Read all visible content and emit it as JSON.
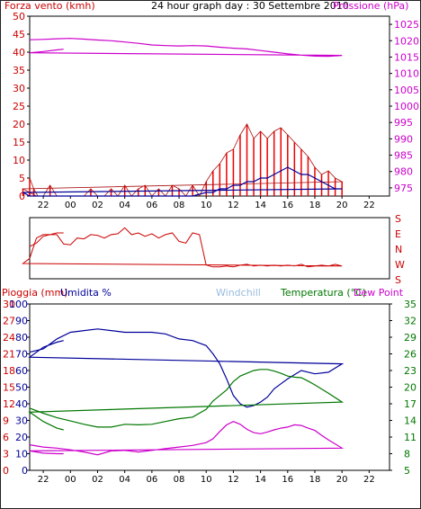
{
  "header": {
    "wind_title": "Forza vento (kmh)",
    "main_title": "24 hour graph day : 30 Settembre 2010",
    "pressure_title": "Pressione (hPa)"
  },
  "bottom_header": {
    "rain_title": "Pioggia (mm)",
    "humidity_title": "Umidita %",
    "windchill_title": "Windchill",
    "temp_title": "Temperatura (°C)",
    "dewpoint_title": "Dew Point"
  },
  "colors": {
    "wind": "#ee0000",
    "wind_dark": "#aa1111",
    "gust": "#000099",
    "pressure": "#cc00cc",
    "humidity": "#000099",
    "temperature": "#007700",
    "dewpoint": "#cc00cc",
    "windchill": "#99bbdd",
    "axis": "#000080"
  },
  "chart_data": [
    {
      "type": "line",
      "name": "wind-pressure",
      "x_tick_labels": [
        "22",
        "00",
        "02",
        "04",
        "06",
        "08",
        "10",
        "12",
        "14",
        "16",
        "18",
        "20",
        "22"
      ],
      "y_left": {
        "label": "Forza vento (kmh)",
        "ylim": [
          0,
          50
        ],
        "ticks": [
          "0",
          "5",
          "10",
          "15",
          "20",
          "25",
          "30",
          "35",
          "40",
          "45",
          "50"
        ]
      },
      "y_right": {
        "label": "Pressione (hPa)",
        "ylim": [
          972.5,
          1027.5
        ],
        "ticks": [
          "975",
          "980",
          "985",
          "990",
          "995",
          "1000",
          "1005",
          "1010",
          "1015",
          "1020",
          "1025"
        ]
      },
      "series": [
        {
          "name": "Pressione (hPa)",
          "axis": "right",
          "x": [
            21,
            22,
            23,
            0,
            1,
            2,
            3,
            4,
            5,
            6,
            7,
            8,
            9,
            10,
            11,
            12,
            13,
            14,
            15,
            16,
            17,
            18,
            19,
            20,
            21,
            22,
            23,
            23.5
          ],
          "values": [
            1020.3,
            1020.4,
            1020.6,
            1020.7,
            1020.5,
            1020.2,
            1020.0,
            1019.6,
            1019.2,
            1018.7,
            1018.5,
            1018.4,
            1018.5,
            1018.4,
            1018.0,
            1017.7,
            1017.5,
            1017.0,
            1016.5,
            1016.0,
            1015.6,
            1015.3,
            1015.2,
            1015.5,
            1016.3,
            1016.7,
            1017.2,
            1017.4
          ]
        },
        {
          "name": "Forza vento (kmh)",
          "axis": "left",
          "x": [
            21,
            21.3,
            21.6,
            22,
            22.5,
            23,
            23.5,
            0,
            0.5,
            1,
            1.5,
            2,
            2.5,
            3,
            3.5,
            4,
            4.5,
            5,
            5.5,
            6,
            6.5,
            7,
            7.5,
            8,
            8.5,
            9,
            9.5,
            10,
            10.5,
            11,
            11.5,
            12,
            12.5,
            13,
            13.5,
            14,
            14.5,
            15,
            15.5,
            16,
            16.5,
            17,
            17.5,
            18,
            18.5,
            19,
            19.5,
            20,
            20.5,
            21,
            21.5,
            22,
            22.5,
            23,
            23.5
          ],
          "values": [
            5,
            2,
            0,
            0,
            3,
            0,
            0,
            0,
            0,
            0,
            2,
            0,
            0,
            2,
            0,
            3,
            0,
            2,
            3,
            0,
            2,
            0,
            3,
            2,
            0,
            3,
            0,
            4,
            7,
            9,
            12,
            13,
            17,
            20,
            16,
            18,
            16,
            18,
            19,
            17,
            15,
            13,
            11,
            8,
            6,
            7,
            5,
            4,
            2,
            1,
            0,
            0,
            0,
            0,
            0
          ]
        },
        {
          "name": "Raffica (kmh)",
          "axis": "left",
          "x": [
            21,
            22,
            23,
            0,
            2,
            4,
            6,
            8,
            9,
            10,
            10.5,
            11,
            11.5,
            12,
            12.5,
            13,
            13.5,
            14,
            14.5,
            15,
            15.5,
            16,
            16.5,
            17,
            17.5,
            18,
            18.5,
            19,
            19.5,
            20,
            20.5,
            21,
            22,
            23,
            23.5
          ],
          "values": [
            0,
            0,
            0,
            0,
            0,
            0,
            0,
            0,
            0,
            1,
            1,
            2,
            2,
            3,
            3,
            4,
            4,
            5,
            5,
            6,
            7,
            8,
            7,
            6,
            6,
            5,
            4,
            3,
            2,
            2,
            1,
            0,
            0,
            0,
            0
          ]
        }
      ]
    },
    {
      "type": "line",
      "name": "wind-direction",
      "x_tick_labels": [
        "22",
        "00",
        "02",
        "04",
        "06",
        "08",
        "10",
        "12",
        "14",
        "16",
        "18",
        "20",
        "22"
      ],
      "y_right": {
        "ticks": [
          "S",
          "E",
          "N",
          "W",
          "S"
        ]
      },
      "series": [
        {
          "name": "Direzione vento",
          "x": [
            21,
            21.5,
            22,
            22.5,
            23,
            23.5,
            0,
            0.5,
            1,
            1.5,
            2,
            2.5,
            3,
            3.5,
            4,
            4.5,
            5,
            5.5,
            6,
            6.5,
            7,
            7.5,
            8,
            8.5,
            9,
            9.5,
            10,
            10.5,
            11,
            11.5,
            12,
            12.5,
            13,
            13.5,
            14,
            14.5,
            15,
            15.5,
            16,
            16.5,
            17,
            17.5,
            18,
            18.5,
            19,
            19.5,
            20,
            20.5,
            21,
            21.5,
            22,
            22.5,
            23,
            23.5
          ],
          "values": [
            170,
            150,
            110,
            100,
            100,
            155,
            160,
            120,
            125,
            100,
            105,
            120,
            100,
            95,
            60,
            100,
            90,
            110,
            95,
            120,
            100,
            90,
            140,
            150,
            90,
            100,
            280,
            290,
            290,
            285,
            290,
            280,
            275,
            285,
            280,
            285,
            280,
            285,
            280,
            285,
            275,
            290,
            285,
            280,
            285,
            275,
            285,
            270,
            240,
            120,
            100,
            100,
            90,
            90
          ]
        }
      ]
    },
    {
      "type": "line",
      "name": "temp-humidity-rain",
      "x_tick_labels": [
        "22",
        "00",
        "02",
        "04",
        "06",
        "08",
        "10",
        "12",
        "14",
        "16",
        "18",
        "20",
        "22"
      ],
      "y_rain": {
        "label": "Pioggia (mm)",
        "ylim": [
          0,
          30
        ],
        "ticks": [
          "0",
          "3",
          "6",
          "9",
          "12",
          "15",
          "18",
          "21",
          "24",
          "27",
          "30"
        ]
      },
      "y_humidity": {
        "label": "Umidita %",
        "ylim": [
          0,
          100
        ],
        "ticks": [
          "0",
          "10",
          "20",
          "30",
          "40",
          "50",
          "60",
          "70",
          "80",
          "90",
          "100"
        ]
      },
      "y_temp": {
        "label": "Temperatura (°C)",
        "ylim": [
          5,
          35
        ],
        "ticks": [
          "5",
          "8",
          "11",
          "14",
          "17",
          "20",
          "23",
          "26",
          "29",
          "32",
          "35"
        ]
      },
      "series": [
        {
          "name": "Umidita %",
          "axis": "humidity",
          "x": [
            21,
            22,
            23,
            0,
            1,
            2,
            3,
            4,
            5,
            6,
            7,
            8,
            9,
            10,
            10.5,
            11,
            11.5,
            12,
            12.5,
            13,
            13.5,
            14,
            14.5,
            15,
            15.5,
            16,
            17,
            18,
            19,
            20,
            21,
            22,
            23,
            23.5
          ],
          "values": [
            71,
            73,
            79,
            83,
            84,
            85,
            84,
            83,
            83,
            83,
            82,
            79,
            78,
            75,
            70,
            64,
            55,
            45,
            40,
            38,
            39,
            41,
            44,
            49,
            52,
            55,
            60,
            58,
            59,
            64,
            68,
            74,
            77,
            78
          ]
        },
        {
          "name": "Temperatura (°C)",
          "axis": "temp",
          "x": [
            21,
            22,
            23,
            0,
            1,
            2,
            3,
            4,
            5,
            6,
            7,
            8,
            9,
            10,
            10.5,
            11,
            11.5,
            12,
            12.5,
            13,
            13.5,
            14,
            14.5,
            15,
            15.5,
            16,
            16.5,
            17,
            17.5,
            18,
            19,
            20,
            21,
            22,
            23,
            23.5
          ],
          "values": [
            16.2,
            15.3,
            14.5,
            13.9,
            13.3,
            12.8,
            12.8,
            13.3,
            13.2,
            13.3,
            13.8,
            14.3,
            14.6,
            16,
            17.5,
            18.5,
            19.5,
            21,
            22,
            22.5,
            23,
            23.2,
            23.2,
            22.9,
            22.5,
            22,
            21.8,
            21.7,
            21.1,
            20.4,
            18.9,
            17.3,
            15.5,
            13.8,
            12.6,
            12.3
          ]
        },
        {
          "name": "Dew Point",
          "axis": "temp",
          "x": [
            21,
            22,
            23,
            0,
            1,
            2,
            3,
            4,
            5,
            6,
            7,
            8,
            9,
            10,
            10.5,
            11,
            11.5,
            12,
            12.5,
            13,
            13.5,
            14,
            14.5,
            15,
            15.5,
            16,
            16.5,
            17,
            17.5,
            18,
            18.5,
            19,
            20,
            21,
            22,
            23,
            23.5
          ],
          "values": [
            9.6,
            9.2,
            9.0,
            8.7,
            8.3,
            7.8,
            8.5,
            8.6,
            8.3,
            8.6,
            8.9,
            9.2,
            9.5,
            10,
            10.7,
            12,
            13.2,
            13.8,
            13.3,
            12.4,
            11.8,
            11.6,
            11.9,
            12.3,
            12.6,
            12.8,
            13.2,
            13.1,
            12.6,
            12.2,
            11.3,
            10.5,
            9.0,
            8.5,
            8.1,
            8.0,
            8.0
          ]
        }
      ]
    }
  ]
}
